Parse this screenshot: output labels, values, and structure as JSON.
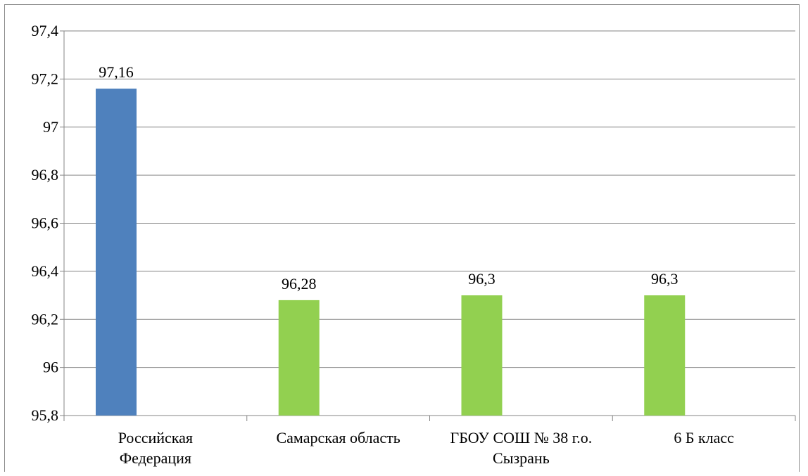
{
  "chart_data": {
    "type": "bar",
    "categories": [
      [
        "Российская",
        "Федерация"
      ],
      [
        "Самарская область"
      ],
      [
        "ГБОУ СОШ № 38 г.о.",
        "Сызрань"
      ],
      [
        "6 Б класс"
      ]
    ],
    "values": [
      97.16,
      96.28,
      96.3,
      96.3
    ],
    "value_labels": [
      "97,16",
      "96,28",
      "96,3",
      "96,3"
    ],
    "bar_colors": [
      "#4F81BD",
      "#92D050",
      "#92D050",
      "#92D050"
    ],
    "ylim": [
      95.8,
      97.4
    ],
    "yticks": [
      95.8,
      96,
      96.2,
      96.4,
      96.6,
      96.8,
      97,
      97.2,
      97.4
    ],
    "ytick_labels": [
      "95,8",
      "96",
      "96,2",
      "96,4",
      "96,6",
      "96,8",
      "97",
      "97,2",
      "97,4"
    ],
    "grid": true,
    "gridline_color": "#868686",
    "title": "",
    "xlabel": "",
    "ylabel": ""
  }
}
